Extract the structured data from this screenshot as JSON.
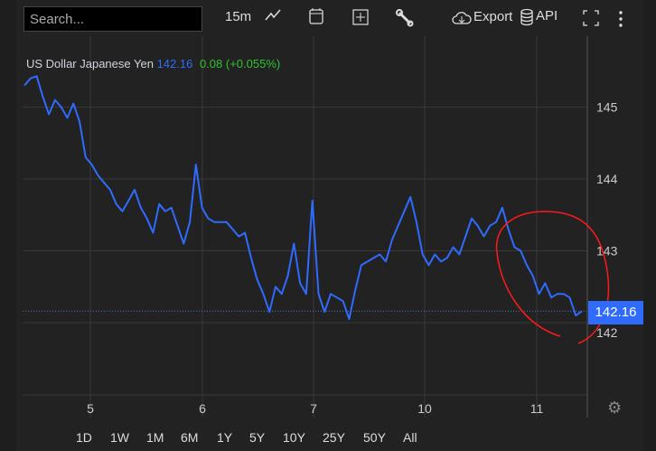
{
  "toolbar": {
    "search_placeholder": "Search...",
    "interval": "15m",
    "export_label": "Export",
    "api_label": "API",
    "icons": [
      "line-chart-icon",
      "calendar-icon",
      "add-indicator-icon",
      "wrench-icon",
      "cloud-download-icon",
      "database-icon",
      "fullscreen-icon",
      "more-vertical-icon"
    ]
  },
  "legend": {
    "name": "US Dollar Japanese Yen",
    "price": "142.16",
    "change": "0.08 (+0.055%)"
  },
  "colors": {
    "series": "#2f6bff",
    "change": "#2ec32e",
    "annotation": "#ff1a1a",
    "background": "#222222"
  },
  "price_label": "142.16",
  "ranges": [
    "1D",
    "1W",
    "1M",
    "6M",
    "1Y",
    "5Y",
    "10Y",
    "25Y",
    "50Y",
    "All"
  ],
  "chart_data": {
    "type": "line",
    "title": "US Dollar Japanese Yen",
    "x_ticks": [
      "5",
      "6",
      "7",
      "10",
      "11"
    ],
    "y_ticks": [
      "142",
      "143",
      "144",
      "145"
    ],
    "ylim": [
      141.0,
      146.0
    ],
    "grid": true,
    "y_axis_side": "right",
    "last_value": 142.16,
    "values": [
      145.3,
      145.4,
      145.43,
      145.15,
      144.9,
      145.1,
      145.0,
      144.85,
      145.05,
      144.8,
      144.3,
      144.2,
      144.05,
      143.95,
      143.85,
      143.65,
      143.55,
      143.7,
      143.85,
      143.6,
      143.45,
      143.25,
      143.65,
      143.55,
      143.6,
      143.35,
      143.1,
      143.4,
      144.2,
      143.6,
      143.45,
      143.4,
      143.4,
      143.4,
      143.3,
      143.2,
      143.25,
      142.9,
      142.6,
      142.4,
      142.15,
      142.5,
      142.4,
      142.65,
      143.1,
      142.55,
      142.4,
      143.7,
      142.4,
      142.15,
      142.4,
      142.35,
      142.3,
      142.05,
      142.45,
      142.8,
      142.85,
      142.9,
      142.95,
      142.85,
      143.15,
      143.35,
      143.55,
      143.75,
      143.4,
      142.95,
      142.8,
      142.95,
      142.85,
      142.9,
      143.05,
      142.95,
      143.2,
      143.45,
      143.35,
      143.2,
      143.35,
      143.4,
      143.6,
      143.3,
      143.05,
      143.0,
      142.8,
      142.65,
      142.4,
      142.55,
      142.35,
      142.4,
      142.4,
      142.35,
      142.1,
      142.16
    ]
  }
}
